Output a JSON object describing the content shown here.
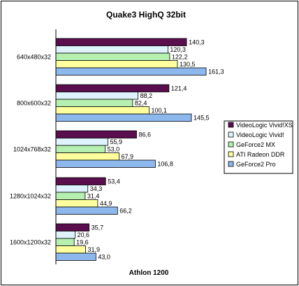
{
  "chart_data": {
    "type": "bar",
    "orientation": "horizontal",
    "title": "Quake3 HighQ 32bit",
    "xlabel": "Athlon 1200",
    "ylabel": "",
    "xlim": [
      0,
      180
    ],
    "categories": [
      "640x480x32",
      "800x600x32",
      "1024x768x32",
      "1280x1024x32",
      "1600x1200x32"
    ],
    "series": [
      {
        "name": "VideoLogic Vivid!XS",
        "color": "#5a0e4e",
        "values": [
          140.3,
          121.4,
          86.6,
          53.4,
          35.7
        ],
        "labels": [
          "140,3",
          "121,4",
          "86,6",
          "53,4",
          "35,7"
        ]
      },
      {
        "name": "VideoLogic Vivid!",
        "color": "#dff3ff",
        "values": [
          120.3,
          88.2,
          55.9,
          34.3,
          20.6
        ],
        "labels": [
          "120,3",
          "88,2",
          "55,9",
          "34,3",
          "20,6"
        ]
      },
      {
        "name": "GeForce2 MX",
        "color": "#b6f0b0",
        "values": [
          122.2,
          82.4,
          53.0,
          31.4,
          19.6
        ],
        "labels": [
          "122,2",
          "82,4",
          "53,0",
          "31,4",
          "19,6"
        ]
      },
      {
        "name": "ATI Radeon DDR",
        "color": "#ffff9e",
        "values": [
          130.5,
          100.1,
          67.9,
          44.9,
          31.9
        ],
        "labels": [
          "130,5",
          "100,1",
          "67,9",
          "44,9",
          "31,9"
        ]
      },
      {
        "name": "GeForce2 Pro",
        "color": "#8cb8ee",
        "values": [
          161.3,
          145.5,
          106.8,
          66.2,
          43.0
        ],
        "labels": [
          "161,3",
          "145,5",
          "106,8",
          "66,2",
          "43,0"
        ]
      }
    ],
    "grid": false,
    "legend": "right"
  }
}
